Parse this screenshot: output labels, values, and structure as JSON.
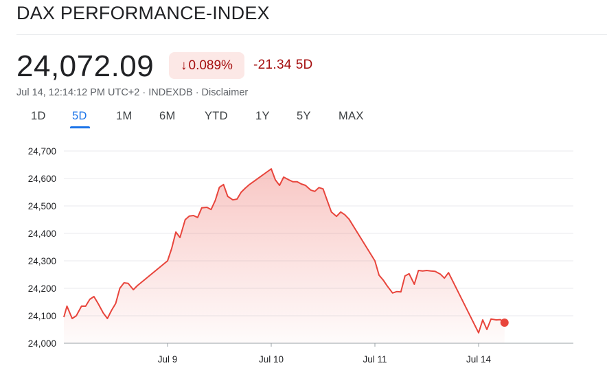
{
  "header": {
    "title": "DAX PERFORMANCE-INDEX"
  },
  "quote": {
    "price": "24,072.09",
    "change_pct": "0.089%",
    "change_abs": "-21.34",
    "change_period": "5D",
    "meta": "Jul 14, 12:14:12 PM UTC+2 · INDEXDB · Disclaimer"
  },
  "tabs": [
    {
      "label": "1D",
      "active": false
    },
    {
      "label": "5D",
      "active": true
    },
    {
      "label": "1M",
      "active": false
    },
    {
      "label": "6M",
      "active": false
    },
    {
      "label": "YTD",
      "active": false
    },
    {
      "label": "1Y",
      "active": false
    },
    {
      "label": "5Y",
      "active": false
    },
    {
      "label": "MAX",
      "active": false
    }
  ],
  "colors": {
    "line": "#e8453c",
    "negative_text": "#a50e0e",
    "negative_bg": "#fce8e6",
    "active_tab": "#1a73e8"
  },
  "chart_data": {
    "type": "area",
    "ylim": [
      24000,
      24700
    ],
    "yticks": [
      24000,
      24100,
      24200,
      24300,
      24400,
      24500,
      24600,
      24700
    ],
    "ytick_labels": [
      "24,000",
      "24,100",
      "24,200",
      "24,300",
      "24,400",
      "24,500",
      "24,600",
      "24,700"
    ],
    "xlim": [
      0,
      4.9
    ],
    "xticks": [
      1,
      2,
      3,
      4
    ],
    "xtick_labels": [
      "Jul 9",
      "Jul 10",
      "Jul 11",
      "Jul 14"
    ],
    "grid": true,
    "series": [
      {
        "x": [
          0.0,
          0.03,
          0.08,
          0.12,
          0.17,
          0.21,
          0.25,
          0.29,
          0.33,
          0.38,
          0.42,
          0.46,
          0.5,
          0.54,
          0.58,
          0.62,
          0.67,
          0.71,
          1.0,
          1.04,
          1.08,
          1.12,
          1.17,
          1.21,
          1.25,
          1.29,
          1.33,
          1.38,
          1.42,
          1.46,
          1.5,
          1.54,
          1.58,
          1.63,
          1.67,
          1.71,
          1.75,
          1.79,
          2.0,
          2.04,
          2.08,
          2.12,
          2.17,
          2.21,
          2.25,
          2.29,
          2.33,
          2.38,
          2.42,
          2.46,
          2.5,
          2.54,
          2.58,
          2.63,
          2.67,
          2.71,
          2.75,
          3.0,
          3.04,
          3.08,
          3.12,
          3.17,
          3.21,
          3.25,
          3.29,
          3.33,
          3.38,
          3.42,
          3.46,
          3.5,
          3.54,
          3.58,
          3.63,
          3.67,
          3.71,
          4.0,
          4.04,
          4.08,
          4.12,
          4.17,
          4.21,
          4.25
        ],
        "y": [
          24095,
          24135,
          24090,
          24100,
          24135,
          24135,
          24160,
          24170,
          24145,
          24110,
          24090,
          24120,
          24145,
          24200,
          24220,
          24218,
          24195,
          24210,
          24300,
          24345,
          24405,
          24385,
          24450,
          24463,
          24465,
          24458,
          24493,
          24495,
          24487,
          24520,
          24568,
          24578,
          24535,
          24522,
          24525,
          24550,
          24565,
          24578,
          24635,
          24595,
          24575,
          24605,
          24595,
          24588,
          24588,
          24580,
          24575,
          24558,
          24553,
          24567,
          24562,
          24520,
          24478,
          24462,
          24478,
          24468,
          24452,
          24300,
          24248,
          24230,
          24208,
          24183,
          24188,
          24187,
          24245,
          24253,
          24215,
          24265,
          24263,
          24265,
          24263,
          24262,
          24252,
          24237,
          24257,
          24038,
          24085,
          24050,
          24088,
          24085,
          24086,
          24075
        ]
      }
    ]
  }
}
